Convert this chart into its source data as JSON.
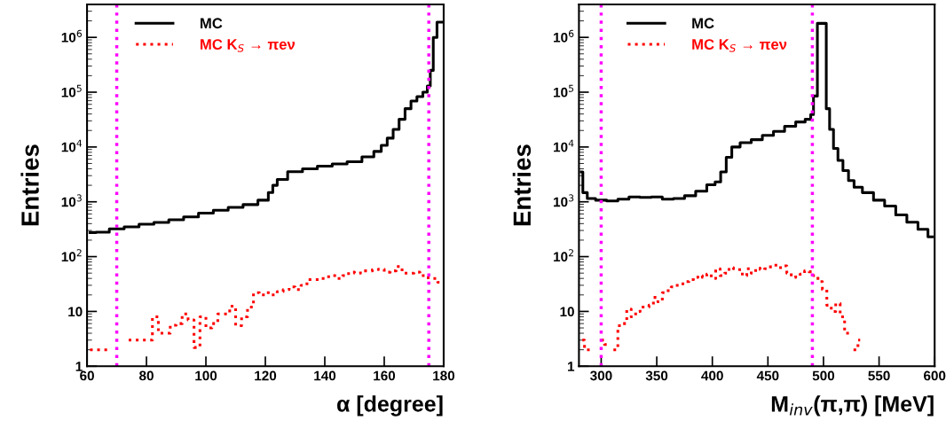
{
  "chart_data": [
    {
      "type": "step",
      "xlabel": "α [degree]",
      "ylabel": "Entries",
      "log": true,
      "xlim": [
        60,
        180
      ],
      "xticks": [
        60,
        80,
        100,
        120,
        140,
        160,
        180
      ],
      "ylim": [
        1,
        4000000
      ],
      "yticks": [
        1,
        10,
        {
          "value": 100,
          "label": "10$^{2}$"
        },
        {
          "value": 1000,
          "label": "10$^{3}$"
        },
        {
          "value": 10000,
          "label": "10$^{4}$"
        },
        {
          "value": 100000,
          "label": "10$^{5}$"
        },
        {
          "value": 1000000,
          "label": "10$^{6}$"
        }
      ],
      "legend": "top left",
      "grid": false,
      "ref_lines": [
        {
          "axis": "x",
          "value": 70,
          "color": "#ff00ff",
          "line_style": "dotted"
        },
        {
          "axis": "x",
          "value": 175,
          "color": "#ff00ff",
          "line_style": "dotted"
        }
      ],
      "series": [
        {
          "name": "MC",
          "color": "#000000",
          "line_style": "solid",
          "x": [
            61,
            65,
            70,
            75,
            80,
            85,
            90,
            95,
            100,
            105,
            110,
            115,
            120,
            122,
            123,
            125,
            130,
            135,
            140,
            145,
            150,
            155,
            158,
            160,
            162,
            164,
            166,
            168,
            170,
            172,
            174,
            175,
            176,
            177,
            178.5,
            179.5
          ],
          "values": [
            275,
            280,
            320,
            350,
            390,
            420,
            470,
            530,
            620,
            700,
            790,
            890,
            1070,
            1480,
            2000,
            2560,
            3550,
            4000,
            4470,
            4900,
            5380,
            6600,
            8300,
            10700,
            14500,
            21000,
            32000,
            50000,
            69000,
            83000,
            100000,
            130000,
            250000,
            1000000,
            1900000,
            1900000
          ]
        },
        {
          "name": "MC K$_{S}$ → πeν",
          "color": "#ff0000",
          "line_style": "dotted",
          "x": [
            61,
            63,
            65,
            67,
            69,
            71,
            73,
            75,
            77,
            79,
            81,
            83,
            85,
            87,
            89,
            91,
            93,
            95,
            97,
            99,
            101,
            103,
            105,
            107,
            109,
            111,
            113,
            115,
            117,
            119,
            121,
            123,
            125,
            127,
            129,
            131,
            133,
            135,
            137,
            139,
            141,
            143,
            145,
            147,
            149,
            151,
            153,
            155,
            157,
            159,
            161,
            163,
            165,
            167,
            169,
            171,
            173,
            175,
            177,
            179
          ],
          "values": [
            2,
            2,
            2,
            2,
            null,
            null,
            null,
            3,
            3,
            3,
            3,
            8,
            4,
            4,
            5.6,
            6,
            9,
            7,
            2.2,
            8,
            5,
            6,
            9,
            9,
            12.5,
            5.5,
            8,
            12,
            22,
            20,
            22,
            20,
            23,
            25,
            28,
            25,
            30,
            38,
            38,
            40,
            43,
            45,
            40,
            45,
            52,
            50,
            55,
            55,
            58,
            59,
            52,
            55,
            66,
            50,
            50,
            52,
            45,
            41,
            40,
            34
          ]
        }
      ]
    },
    {
      "type": "step",
      "xlabel": "M$_{inv}$(π,π) [MeV]",
      "ylabel": "Entries",
      "log": true,
      "xlim": [
        280,
        600
      ],
      "xticks": [
        300,
        350,
        400,
        450,
        500,
        550,
        600
      ],
      "ylim": [
        1,
        4000000
      ],
      "yticks": [
        1,
        10,
        {
          "value": 100,
          "label": "10$^{2}$"
        },
        {
          "value": 1000,
          "label": "10$^{3}$"
        },
        {
          "value": 10000,
          "label": "10$^{4}$"
        },
        {
          "value": 100000,
          "label": "10$^{5}$"
        },
        {
          "value": 1000000,
          "label": "10$^{6}$"
        }
      ],
      "legend": "top left",
      "grid": false,
      "ref_lines": [
        {
          "axis": "x",
          "value": 300,
          "color": "#ff00ff",
          "line_style": "dotted"
        },
        {
          "axis": "x",
          "value": 490,
          "color": "#ff00ff",
          "line_style": "dotted"
        }
      ],
      "series": [
        {
          "name": "MC",
          "color": "#000000",
          "line_style": "solid",
          "x": [
            282,
            285,
            290,
            300,
            310,
            320,
            330,
            340,
            350,
            360,
            370,
            380,
            390,
            400,
            405,
            410,
            415,
            420,
            430,
            440,
            450,
            460,
            470,
            480,
            487,
            490,
            492,
            497,
            501,
            504,
            507,
            511,
            515,
            520,
            525,
            530,
            540,
            550,
            560,
            570,
            580,
            590,
            598
          ],
          "values": [
            3500,
            1470,
            1150,
            1070,
            1040,
            1120,
            1230,
            1200,
            1230,
            1120,
            1150,
            1290,
            1560,
            2040,
            2300,
            3500,
            6500,
            10000,
            12000,
            13600,
            16300,
            19200,
            23800,
            28600,
            32000,
            39000,
            85000,
            1800000,
            1800000,
            50000,
            21000,
            9400,
            5700,
            3700,
            2440,
            1850,
            1470,
            1070,
            835,
            575,
            425,
            315,
            230
          ]
        },
        {
          "name": "MC K$_{S}$ → πeν",
          "color": "#ff0000",
          "line_style": "dotted",
          "x": [
            283,
            287,
            291,
            295,
            299,
            301,
            305,
            309,
            313,
            317,
            321,
            325,
            329,
            333,
            337,
            341,
            345,
            349,
            353,
            357,
            361,
            365,
            369,
            373,
            377,
            381,
            385,
            389,
            393,
            397,
            401,
            405,
            409,
            413,
            417,
            421,
            425,
            429,
            433,
            437,
            441,
            445,
            449,
            453,
            457,
            461,
            465,
            469,
            473,
            477,
            481,
            485,
            489,
            493,
            497,
            501,
            505,
            509,
            513,
            517,
            521,
            525,
            529,
            533
          ],
          "values": [
            3,
            2,
            2,
            null,
            null,
            3,
            2.5,
            null,
            2,
            5.5,
            6,
            11,
            8,
            10,
            12,
            12,
            13,
            18,
            15,
            22,
            24,
            28,
            30,
            32,
            35,
            38,
            42,
            45,
            42,
            48,
            40,
            60,
            45,
            50,
            63,
            60,
            58,
            45,
            60,
            50,
            62,
            58,
            60,
            65,
            70,
            63,
            68,
            50,
            42,
            45,
            48,
            55,
            53,
            45,
            35,
            25,
            13,
            10,
            14,
            8,
            4,
            null,
            2,
            3
          ]
        }
      ]
    }
  ]
}
